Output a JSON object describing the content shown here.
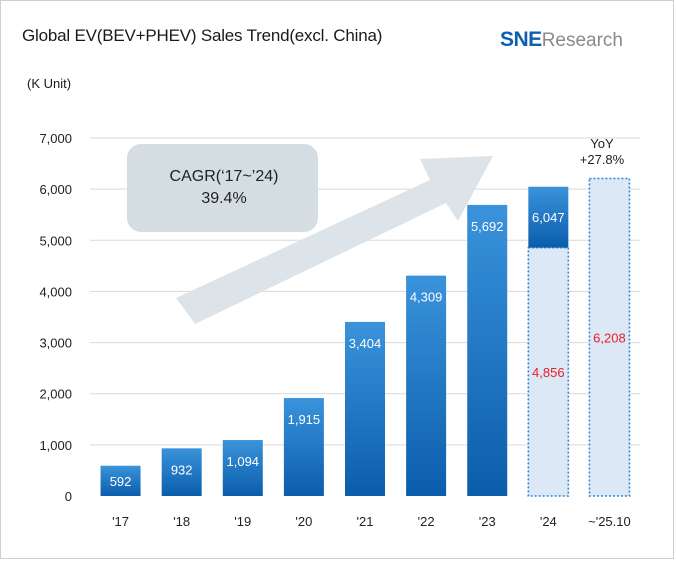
{
  "header": {
    "title": "Global EV(BEV+PHEV) Sales Trend(excl. China)",
    "logo_brand": "SNE",
    "logo_suffix": "Research",
    "unit_label": "(K Unit)"
  },
  "colors": {
    "bar_top": "#3a93db",
    "bar_bottom": "#0b5dab",
    "bar_label": "#ffffff",
    "ytd_fill": "#dde8f7",
    "ytd_border": "#2f86d6",
    "ytd_label": "#e8202a",
    "grid": "#d9d9d9",
    "cagr_box": "#d4dde1",
    "arrow": "#dce4ea"
  },
  "annotations": {
    "cagr_line1": "CAGR(‘17~’24)",
    "cagr_line2": "39.4%",
    "yoy_line1": "YoY",
    "yoy_line2": "+27.8%"
  },
  "chart_data": {
    "type": "bar",
    "title": "Global EV(BEV+PHEV) Sales Trend(excl. China)",
    "ylabel": "(K Unit)",
    "ylim": [
      0,
      7000
    ],
    "yticks": [
      0,
      1000,
      2000,
      3000,
      4000,
      5000,
      6000,
      7000
    ],
    "ytick_labels": [
      "0",
      "1,000",
      "2,000",
      "3,000",
      "4,000",
      "5,000",
      "6,000",
      "7,000"
    ],
    "grid": true,
    "categories": [
      "'17",
      "'18",
      "'19",
      "'20",
      "'21",
      "'22",
      "'23",
      "'24",
      "~'25.10"
    ],
    "values": [
      592,
      932,
      1094,
      1915,
      3404,
      4309,
      5692,
      6047,
      null
    ],
    "value_labels": [
      "592",
      "932",
      "1,094",
      "1,915",
      "3,404",
      "4,309",
      "5,692",
      "6,047",
      ""
    ],
    "ytd_values": [
      null,
      null,
      null,
      null,
      null,
      null,
      null,
      4856,
      6208
    ],
    "ytd_labels": [
      "",
      "",
      "",
      "",
      "",
      "",
      "",
      "4,856",
      "6,208"
    ]
  }
}
